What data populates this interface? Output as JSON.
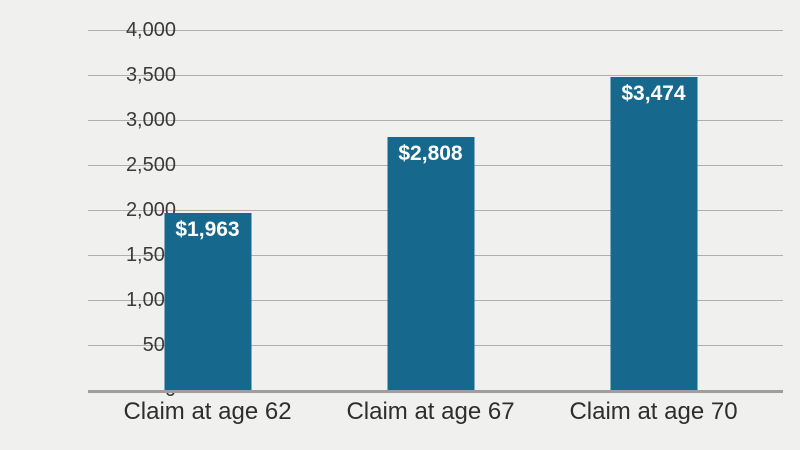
{
  "chart_data": {
    "type": "bar",
    "categories": [
      "Claim at age 62",
      "Claim at age 67",
      "Claim at age 70"
    ],
    "values": [
      1963,
      2808,
      3474
    ],
    "bar_labels": [
      "$1,963",
      "$2,808",
      "$3,474"
    ],
    "title": "",
    "xlabel": "",
    "ylabel": "",
    "ylim": [
      0,
      4000
    ],
    "yticks": [
      0,
      500,
      1000,
      1500,
      2000,
      2500,
      3000,
      3500,
      4000
    ],
    "ytick_labels": [
      "0",
      "500",
      "1,000",
      "1,500",
      "2,000",
      "2,500",
      "3,000",
      "3,500",
      "4,000"
    ],
    "grid": true,
    "legend": false,
    "colors": {
      "bar": "#16688C",
      "background": "#F0F0EF",
      "gridline": "#AFAFAF",
      "baseline": "#9E9E9E",
      "bar_label_text": "#FFFFFF",
      "ytick_text": "#3A3A3A",
      "xlabel_text": "#2E2E2E"
    }
  }
}
